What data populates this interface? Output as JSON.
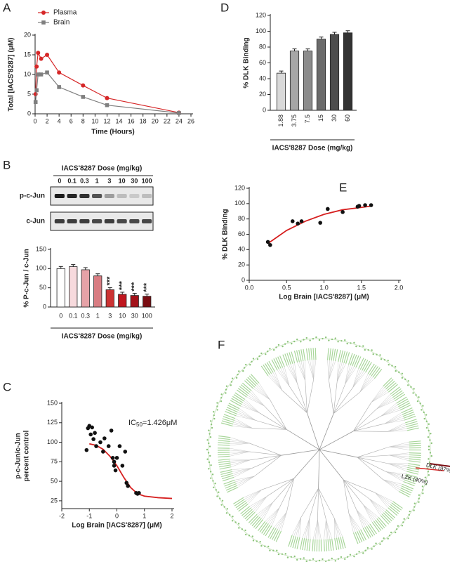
{
  "chart_data": [
    {
      "type": "line",
      "panel": "A",
      "ylabel": "Total [IACS'8287] (μM)",
      "xlabel": "Time (Hours)",
      "x": [
        0.083,
        0.25,
        0.5,
        1,
        2,
        4,
        8,
        12,
        24
      ],
      "series": [
        {
          "name": "Plasma",
          "color": "#d62728",
          "marker": "circle",
          "values": [
            5,
            12,
            15.5,
            14,
            15,
            10.5,
            7.2,
            4,
            0.3
          ]
        },
        {
          "name": "Brain",
          "color": "#7f7f7f",
          "marker": "square",
          "values": [
            3,
            6,
            10,
            10,
            10.5,
            6.8,
            4.3,
            2.2,
            0.2
          ]
        }
      ],
      "xlim": [
        0,
        26
      ],
      "xticks": [
        0,
        2,
        4,
        6,
        8,
        10,
        12,
        14,
        16,
        18,
        20,
        22,
        24,
        26
      ],
      "ylim": [
        0,
        20
      ],
      "yticks": [
        0,
        5,
        10,
        15,
        20
      ],
      "legend": "top-left"
    },
    {
      "type": "bar",
      "panel": "B",
      "ylabel": "% P-c-Jun / c-Jun",
      "xlabel": "IACS'8287 Dose (mg/kg)",
      "blot": {
        "title": "IACS'8287 Dose (mg/kg)",
        "lanes": [
          "0",
          "0.1",
          "0.3",
          "1",
          "3",
          "10",
          "30",
          "100"
        ],
        "rows": [
          "p-c-Jun",
          "c-Jun"
        ]
      },
      "categories": [
        "0",
        "0.1",
        "0.3",
        "1",
        "3",
        "10",
        "30",
        "100"
      ],
      "values": [
        100,
        105,
        97,
        81,
        45,
        33,
        30,
        28
      ],
      "significance": [
        null,
        null,
        null,
        null,
        "***",
        "***",
        "***",
        "***"
      ],
      "colors": [
        "#ffffff",
        "#f7dadd",
        "#e6a2a7",
        "#d87c82",
        "#cc3333",
        "#c0161e",
        "#a3121a",
        "#7a0d12"
      ],
      "ylim": [
        0,
        150
      ],
      "yticks": [
        0,
        50,
        100,
        150
      ]
    },
    {
      "type": "scatter",
      "panel": "C",
      "ylabel": [
        "p-c-Jun/c-Jun",
        "percent control"
      ],
      "xlabel": "Log Brain [IACS'8287] (μM)",
      "annotation": {
        "text": "IC",
        "subscript": "50",
        "suffix": "=1.426μM"
      },
      "points": {
        "color": "#111111",
        "x": [
          -1.1,
          -1.05,
          -1.0,
          -0.95,
          -0.9,
          -0.85,
          -0.8,
          -0.75,
          -0.6,
          -0.5,
          -0.45,
          -0.3,
          -0.2,
          -0.15,
          -0.1,
          -0.1,
          -0.05,
          0,
          0.1,
          0.2,
          0.3,
          0.35,
          0.4,
          0.7,
          0.75,
          0.8
        ],
        "y": [
          90,
          118,
          121,
          110,
          119,
          104,
          112,
          95,
          100,
          88,
          105,
          95,
          115,
          80,
          75,
          70,
          64,
          80,
          95,
          70,
          88,
          48,
          44,
          35,
          34,
          35
        ]
      },
      "fit": {
        "color": "#d62020",
        "x": [
          -1,
          -0.75,
          -0.5,
          -0.25,
          0,
          0.25,
          0.5,
          0.75,
          1,
          1.5,
          2
        ],
        "y": [
          98,
          96,
          91,
          82,
          70,
          55,
          42,
          34,
          31,
          29,
          28
        ]
      },
      "xlim": [
        -2,
        2
      ],
      "xticks": [
        -2,
        -1,
        0,
        1,
        2
      ],
      "ylim": [
        15,
        150
      ],
      "yticks": [
        25,
        50,
        75,
        100,
        125,
        150
      ]
    },
    {
      "type": "bar",
      "panel": "D",
      "ylabel": "% DLK Binding",
      "xlabel": "IACS'8287 Dose (mg/kg)",
      "categories": [
        "1.88",
        "3.75",
        "7.5",
        "15",
        "30",
        "60"
      ],
      "values": [
        47,
        75,
        75,
        90,
        96,
        98
      ],
      "colors": [
        "#d9d9d9",
        "#a6a6a6",
        "#8c8c8c",
        "#6b6b6b",
        "#4d4d4d",
        "#333333"
      ],
      "ylim": [
        0,
        120
      ],
      "yticks": [
        0,
        20,
        40,
        60,
        80,
        100,
        120
      ]
    },
    {
      "type": "scatter",
      "panel": "E",
      "ylabel": "% DLK Binding",
      "xlabel": "Log Brain [IACS'8287] (μM)",
      "points": {
        "color": "#111111",
        "x": [
          0.25,
          0.28,
          0.58,
          0.65,
          0.7,
          0.95,
          1.05,
          1.25,
          1.45,
          1.47,
          1.55,
          1.63
        ],
        "y": [
          50,
          46,
          77,
          74,
          77,
          75,
          93,
          89,
          96,
          97,
          98,
          98
        ]
      },
      "fit": {
        "color": "#d62020",
        "x": [
          0.25,
          0.5,
          0.75,
          1,
          1.25,
          1.5,
          1.65
        ],
        "y": [
          48,
          65,
          77,
          86,
          92,
          95,
          97
        ]
      },
      "xlim": [
        0,
        2
      ],
      "xticks": [
        {
          "value": 0,
          "label": "0.0"
        },
        {
          "value": 0.5,
          "label": "0.5"
        },
        {
          "value": 1,
          "label": "1.0"
        },
        {
          "value": 1.5,
          "label": "1.5"
        },
        {
          "value": 2,
          "label": "2.0"
        }
      ],
      "ylim": [
        0,
        120
      ],
      "yticks": [
        0,
        20,
        40,
        60,
        80,
        100,
        120
      ]
    }
  ],
  "kinome_tree": {
    "panel": "F",
    "labels": [
      "DLK (97%)",
      "LZK (40%)"
    ]
  }
}
